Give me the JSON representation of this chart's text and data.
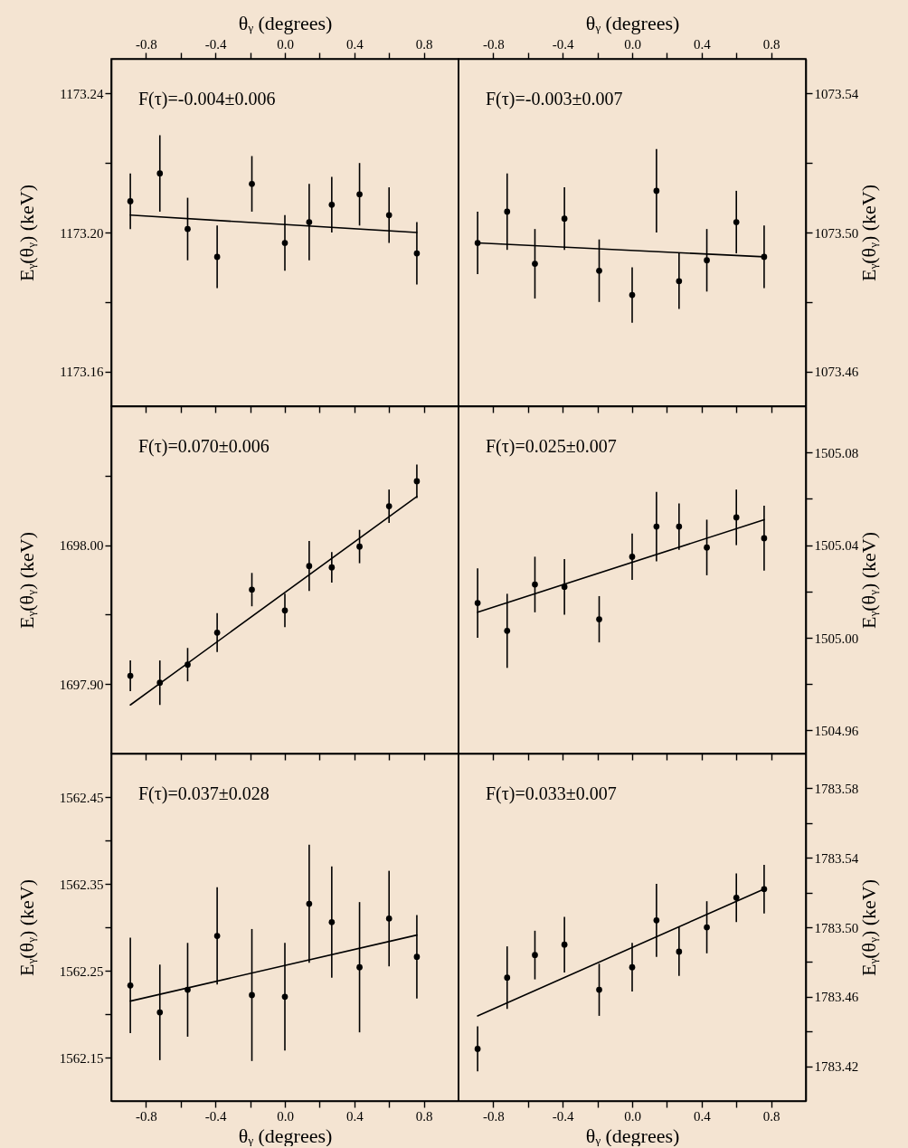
{
  "chart_data": [
    {
      "type": "scatter",
      "x2label": "θᵧ (degrees)",
      "ylabel": "Eᵧ(θᵧ) (keV)",
      "annotations": [
        "F(τ)=-0.004±0.006"
      ],
      "tick_labels": "y",
      "xlim": [
        -1,
        1
      ],
      "xticks": [
        {
          "value": -0.8,
          "label": null
        },
        {
          "value": -0.6,
          "label": null
        },
        {
          "value": -0.4,
          "label": null
        },
        {
          "value": -0.2,
          "label": null
        },
        {
          "value": 0,
          "label": null
        },
        {
          "value": 0.2,
          "label": null
        },
        {
          "value": 0.4,
          "label": null
        },
        {
          "value": 0.6,
          "label": null
        },
        {
          "value": 0.8,
          "label": null
        }
      ],
      "x2lim": [
        -1,
        1
      ],
      "x2ticks": [
        -0.8,
        {
          "value": -0.6,
          "label": null
        },
        -0.4,
        {
          "value": -0.2,
          "label": null
        },
        {
          "value": 0,
          "label": "0.0"
        },
        {
          "value": 0.2,
          "label": null
        },
        0.4,
        {
          "value": 0.6,
          "label": null
        },
        0.8
      ],
      "ylim": [
        1173.15,
        1173.25
      ],
      "yticks": [
        1173.16,
        {
          "value": 1173.18,
          "label": null
        },
        {
          "value": 1173.2,
          "label": "1173.20"
        },
        {
          "value": 1173.22,
          "label": null
        },
        1173.24
      ],
      "x": [
        -0.89,
        -0.72,
        -0.56,
        -0.39,
        -0.19,
        0,
        0.14,
        0.27,
        0.43,
        0.6,
        0.76
      ],
      "series": [
        {
          "type": "scatter",
          "marker": "circle",
          "color": "#000000",
          "values": [
            1173.209,
            1173.217,
            1173.201,
            1173.193,
            1173.214,
            1173.197,
            1173.203,
            1173.208,
            1173.211,
            1173.205,
            1173.194
          ],
          "errors": [
            0.008,
            0.011,
            0.009,
            0.009,
            0.008,
            0.008,
            0.011,
            0.008,
            0.009,
            0.008,
            0.009
          ]
        },
        {
          "type": "line",
          "color": "#000000",
          "values": [
            1173.205,
            null,
            null,
            null,
            null,
            null,
            null,
            null,
            null,
            null,
            1173.2
          ]
        }
      ]
    },
    {
      "type": "scatter",
      "x2label": "θᵧ (degrees)",
      "y2label": "Eᵧ(θᵧ) (keV)",
      "annotations": [
        "F(τ)=-0.003±0.007"
      ],
      "tick_labels": "y",
      "xlim": [
        -1,
        1
      ],
      "xticks": [
        {
          "value": -0.8,
          "label": null
        },
        {
          "value": -0.6,
          "label": null
        },
        {
          "value": -0.4,
          "label": null
        },
        {
          "value": -0.2,
          "label": null
        },
        {
          "value": 0,
          "label": null
        },
        {
          "value": 0.2,
          "label": null
        },
        {
          "value": 0.4,
          "label": null
        },
        {
          "value": 0.6,
          "label": null
        },
        {
          "value": 0.8,
          "label": null
        }
      ],
      "x2lim": [
        -1,
        1
      ],
      "x2ticks": [
        -0.8,
        {
          "value": -0.6,
          "label": null
        },
        -0.4,
        {
          "value": -0.2,
          "label": null
        },
        {
          "value": 0,
          "label": "0.0"
        },
        {
          "value": 0.2,
          "label": null
        },
        0.4,
        {
          "value": 0.6,
          "label": null
        },
        0.8
      ],
      "y2lim": [
        1073.45,
        1073.55
      ],
      "y2ticks": [
        1073.46,
        {
          "value": 1073.48,
          "label": null
        },
        {
          "value": 1073.5,
          "label": "1073.50"
        },
        {
          "value": 1073.52,
          "label": null
        },
        1073.54
      ],
      "x": [
        -0.89,
        -0.72,
        -0.56,
        -0.39,
        -0.19,
        0,
        0.14,
        0.27,
        0.43,
        0.6,
        0.76
      ],
      "series": [
        {
          "type": "scatter",
          "marker": "circle",
          "axis": "y2",
          "color": "#000000",
          "values": [
            1073.497,
            1073.506,
            1073.491,
            1073.504,
            1073.489,
            1073.482,
            1073.512,
            1073.486,
            1073.492,
            1073.503,
            1073.493
          ],
          "errors": [
            0.009,
            0.011,
            0.01,
            0.009,
            0.009,
            0.008,
            0.012,
            0.008,
            0.009,
            0.009,
            0.009
          ]
        },
        {
          "type": "line",
          "axis": "y2",
          "color": "#000000",
          "values": [
            1073.497,
            null,
            null,
            null,
            null,
            null,
            null,
            null,
            null,
            null,
            1073.493
          ]
        }
      ]
    },
    {
      "type": "scatter",
      "ylabel": "Eᵧ(θᵧ) (keV)",
      "annotations": [
        "F(τ)=0.070±0.006"
      ],
      "tick_labels": "y",
      "xlim": [
        -1,
        1
      ],
      "xticks": [
        {
          "value": -0.8,
          "label": null
        },
        {
          "value": -0.6,
          "label": null
        },
        {
          "value": -0.4,
          "label": null
        },
        {
          "value": -0.2,
          "label": null
        },
        {
          "value": 0,
          "label": null
        },
        {
          "value": 0.2,
          "label": null
        },
        {
          "value": 0.4,
          "label": null
        },
        {
          "value": 0.6,
          "label": null
        },
        {
          "value": 0.8,
          "label": null
        }
      ],
      "ylim": [
        1697.85,
        1698.1
      ],
      "yticks": [
        {
          "value": 1697.9,
          "label": "1697.90"
        },
        {
          "value": 1697.95,
          "label": null
        },
        {
          "value": 1698,
          "label": "1698.00"
        },
        {
          "value": 1698.05,
          "label": null
        }
      ],
      "x": [
        -0.89,
        -0.72,
        -0.56,
        -0.39,
        -0.19,
        0,
        0.14,
        0.27,
        0.43,
        0.6,
        0.76
      ],
      "series": [
        {
          "type": "scatter",
          "marker": "circle",
          "color": "#000000",
          "values": [
            1697.906,
            1697.901,
            1697.914,
            1697.937,
            1697.968,
            1697.953,
            1697.985,
            1697.984,
            1697.999,
            1698.028,
            1698.046
          ],
          "errors": [
            0.011,
            0.016,
            0.012,
            0.014,
            0.012,
            0.012,
            0.018,
            0.011,
            0.012,
            0.012,
            0.012
          ]
        },
        {
          "type": "line",
          "color": "#000000",
          "values": [
            1697.885,
            null,
            null,
            null,
            null,
            null,
            null,
            null,
            null,
            null,
            1698.035
          ]
        }
      ]
    },
    {
      "type": "scatter",
      "y2label": "Eᵧ(θᵧ) (keV)",
      "annotations": [
        "F(τ)=0.025±0.007"
      ],
      "tick_labels": "y",
      "xlim": [
        -1,
        1
      ],
      "xticks": [
        {
          "value": -0.8,
          "label": null
        },
        {
          "value": -0.6,
          "label": null
        },
        {
          "value": -0.4,
          "label": null
        },
        {
          "value": -0.2,
          "label": null
        },
        {
          "value": 0,
          "label": null
        },
        {
          "value": 0.2,
          "label": null
        },
        {
          "value": 0.4,
          "label": null
        },
        {
          "value": 0.6,
          "label": null
        },
        {
          "value": 0.8,
          "label": null
        }
      ],
      "y2lim": [
        1504.95,
        1505.1
      ],
      "y2ticks": [
        1504.96,
        {
          "value": 1504.98,
          "label": null
        },
        {
          "value": 1505,
          "label": "1505.00"
        },
        {
          "value": 1505.02,
          "label": null
        },
        1505.04,
        {
          "value": 1505.06,
          "label": null
        },
        1505.08
      ],
      "x": [
        -0.89,
        -0.72,
        -0.56,
        -0.39,
        -0.19,
        0,
        0.14,
        0.27,
        0.43,
        0.6,
        0.76
      ],
      "series": [
        {
          "type": "scatter",
          "marker": "circle",
          "axis": "y2",
          "color": "#000000",
          "values": [
            1505.015,
            1505.003,
            1505.023,
            1505.022,
            1505.008,
            1505.035,
            1505.048,
            1505.048,
            1505.039,
            1505.052,
            1505.043
          ],
          "errors": [
            0.015,
            0.016,
            0.012,
            0.012,
            0.01,
            0.01,
            0.015,
            0.01,
            0.012,
            0.012,
            0.014
          ]
        },
        {
          "type": "line",
          "axis": "y2",
          "color": "#000000",
          "values": [
            1505.011,
            null,
            null,
            null,
            null,
            null,
            null,
            null,
            null,
            null,
            1505.051
          ]
        }
      ]
    },
    {
      "type": "scatter",
      "xlabel": "θᵧ (degrees)",
      "ylabel": "Eᵧ(θᵧ) (keV)",
      "annotations": [
        "F(τ)=0.037±0.028"
      ],
      "xlim": [
        -1,
        1
      ],
      "xticks": [
        -0.8,
        {
          "value": -0.6,
          "label": null
        },
        -0.4,
        {
          "value": -0.2,
          "label": null
        },
        {
          "value": 0,
          "label": "0.0"
        },
        {
          "value": 0.2,
          "label": null
        },
        0.4,
        {
          "value": 0.6,
          "label": null
        },
        0.8
      ],
      "ylim": [
        1562.1,
        1562.5
      ],
      "yticks": [
        1562.15,
        {
          "value": 1562.2,
          "label": null
        },
        1562.25,
        {
          "value": 1562.3,
          "label": null
        },
        1562.35,
        {
          "value": 1562.4,
          "label": null
        },
        1562.45
      ],
      "x": [
        -0.89,
        -0.72,
        -0.56,
        -0.39,
        -0.19,
        0,
        0.14,
        0.27,
        0.43,
        0.6,
        0.76
      ],
      "series": [
        {
          "type": "scatter",
          "marker": "circle",
          "color": "#000000",
          "values": [
            1562.233,
            1562.202,
            1562.228,
            1562.29,
            1562.222,
            1562.22,
            1562.327,
            1562.306,
            1562.254,
            1562.31,
            1562.266
          ],
          "errors": [
            0.055,
            0.055,
            0.054,
            0.056,
            0.076,
            0.062,
            0.068,
            0.064,
            0.075,
            0.055,
            0.048
          ]
        },
        {
          "type": "line",
          "color": "#000000",
          "values": [
            1562.215,
            null,
            null,
            null,
            null,
            null,
            null,
            null,
            null,
            null,
            1562.291
          ]
        }
      ]
    },
    {
      "type": "scatter",
      "xlabel": "θᵧ (degrees)",
      "y2label": "Eᵧ(θᵧ) (keV)",
      "annotations": [
        "F(τ)=0.033±0.007"
      ],
      "xlim": [
        -1,
        1
      ],
      "xticks": [
        -0.8,
        {
          "value": -0.6,
          "label": null
        },
        -0.4,
        {
          "value": -0.2,
          "label": null
        },
        {
          "value": 0,
          "label": "0.0"
        },
        {
          "value": 0.2,
          "label": null
        },
        0.4,
        {
          "value": 0.6,
          "label": null
        },
        0.8
      ],
      "y2lim": [
        1783.4,
        1783.6
      ],
      "y2ticks": [
        1783.42,
        {
          "value": 1783.44,
          "label": null
        },
        1783.46,
        {
          "value": 1783.48,
          "label": null
        },
        {
          "value": 1783.5,
          "label": "1783.50"
        },
        {
          "value": 1783.52,
          "label": null
        },
        1783.54,
        {
          "value": 1783.56,
          "label": null
        },
        1783.58
      ],
      "x": [
        -0.89,
        -0.72,
        -0.56,
        -0.39,
        -0.19,
        0,
        0.14,
        0.27,
        0.43,
        0.6,
        0.76
      ],
      "series": [
        {
          "type": "scatter",
          "marker": "circle",
          "axis": "y2",
          "color": "#000000",
          "values": [
            1783.43,
            1783.471,
            1783.484,
            1783.49,
            1783.464,
            1783.477,
            1783.504,
            1783.486,
            1783.5,
            1783.517,
            1783.522
          ],
          "errors": [
            0.013,
            0.018,
            0.014,
            0.016,
            0.015,
            0.014,
            0.021,
            0.014,
            0.015,
            0.014,
            0.014
          ]
        },
        {
          "type": "line",
          "axis": "y2",
          "color": "#000000",
          "values": [
            1783.449,
            null,
            null,
            null,
            null,
            null,
            null,
            null,
            null,
            null,
            1783.522
          ]
        }
      ]
    }
  ]
}
